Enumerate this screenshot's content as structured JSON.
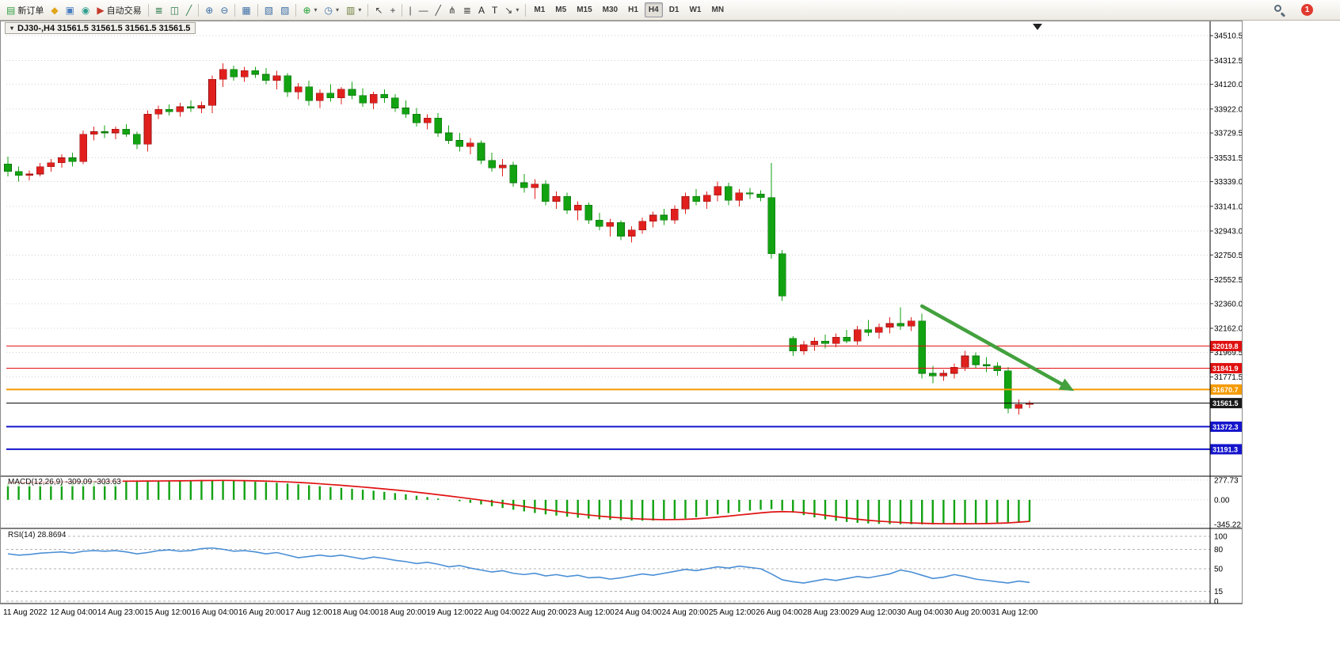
{
  "toolbar": {
    "notification_count": "1",
    "items": [
      {
        "type": "button",
        "name": "new-order-button",
        "glyph": "▤",
        "color": "#2e9e3f",
        "label": "新订单"
      },
      {
        "type": "button",
        "name": "mql-editor-button",
        "glyph": "◆",
        "color": "#e0a51a"
      },
      {
        "type": "button",
        "name": "depth-of-market-button",
        "glyph": "▣",
        "color": "#4a7dc0"
      },
      {
        "type": "button",
        "name": "community-button",
        "glyph": "◉",
        "color": "#2f9e8f"
      },
      {
        "type": "button",
        "name": "auto-trading-button",
        "glyph": "▶",
        "color": "#c43a2a",
        "label": "自动交易"
      },
      {
        "type": "sep"
      },
      {
        "type": "button",
        "name": "bar-chart-button",
        "glyph": "≣",
        "color": "#2f7d4f"
      },
      {
        "type": "button",
        "name": "candlestick-chart-button",
        "glyph": "◫",
        "color": "#2f7d4f"
      },
      {
        "type": "button",
        "name": "line-chart-button",
        "glyph": "╱",
        "color": "#2f7d4f"
      },
      {
        "type": "sep"
      },
      {
        "type": "button",
        "name": "zoom-in-button",
        "glyph": "⊕",
        "color": "#3a6ea5"
      },
      {
        "type": "button",
        "name": "zoom-out-button",
        "glyph": "⊖",
        "color": "#3a6ea5"
      },
      {
        "type": "sep"
      },
      {
        "type": "button",
        "name": "tile-windows-button",
        "glyph": "▦",
        "color": "#3a6ea5"
      },
      {
        "type": "sep"
      },
      {
        "type": "button",
        "name": "arrange-windows-button",
        "glyph": "▧",
        "color": "#3a6ea5"
      },
      {
        "type": "button",
        "name": "chart-shift-button",
        "glyph": "▨",
        "color": "#3a6ea5"
      },
      {
        "type": "sep"
      },
      {
        "type": "button",
        "name": "indicators-button",
        "glyph": "⊕",
        "color": "#1e9e2e",
        "caret": true
      },
      {
        "type": "button",
        "name": "periods-button",
        "glyph": "◷",
        "color": "#3a6ea5",
        "caret": true
      },
      {
        "type": "button",
        "name": "templates-button",
        "glyph": "▥",
        "color": "#6a7d3a",
        "caret": true
      },
      {
        "type": "sep"
      },
      {
        "type": "button",
        "name": "cursor-button",
        "glyph": "↖",
        "color": "#444444"
      },
      {
        "type": "button",
        "name": "crosshair-button",
        "glyph": "+",
        "color": "#444444"
      },
      {
        "type": "sep"
      },
      {
        "type": "button",
        "name": "vertical-line-button",
        "glyph": "|",
        "color": "#444444"
      },
      {
        "type": "button",
        "name": "horizontal-line-button",
        "glyph": "—",
        "color": "#444444"
      },
      {
        "type": "button",
        "name": "trendline-button",
        "glyph": "╱",
        "color": "#444444"
      },
      {
        "type": "button",
        "name": "channel-button",
        "glyph": "⋔",
        "color": "#444444"
      },
      {
        "type": "button",
        "name": "fibonacci-button",
        "glyph": "≣",
        "color": "#444444"
      },
      {
        "type": "button",
        "name": "text-button",
        "glyph": "A",
        "color": "#222222"
      },
      {
        "type": "button",
        "name": "text-label-button",
        "glyph": "T",
        "color": "#222222"
      },
      {
        "type": "button",
        "name": "arrows-tool-button",
        "glyph": "↘",
        "color": "#444444",
        "caret": true
      },
      {
        "type": "sep"
      }
    ],
    "timeframes": {
      "labels": [
        "M1",
        "M5",
        "M15",
        "M30",
        "H1",
        "H4",
        "D1",
        "W1",
        "MN"
      ],
      "active": "H4"
    }
  },
  "chart": {
    "title": "DJ30-,H4  31561.5 31561.5 31561.5 31561.5"
  },
  "indicators": {
    "macd_label": "MACD(12,26,9) -309.09 -303.63",
    "rsi_label": "RSI(14) 28.8694"
  },
  "chart_data": {
    "type": "candlestick",
    "symbol": "DJ30-",
    "timeframe": "H4",
    "current_price": 31561.5,
    "price_range": [
      30975,
      34619
    ],
    "price_ticks": [
      34510.5,
      34312.5,
      34120.0,
      33922.0,
      33729.5,
      33531.5,
      33339.0,
      33141.0,
      32943.0,
      32750.5,
      32552.5,
      32360.0,
      32162.0,
      31969.5,
      31771.5
    ],
    "time_labels": [
      "11 Aug 2022",
      "12 Aug 04:00",
      "14 Aug 23:00",
      "15 Aug 12:00",
      "16 Aug 04:00",
      "16 Aug 20:00",
      "17 Aug 12:00",
      "18 Aug 04:00",
      "18 Aug 20:00",
      "19 Aug 12:00",
      "22 Aug 04:00",
      "22 Aug 20:00",
      "23 Aug 12:00",
      "24 Aug 04:00",
      "24 Aug 20:00",
      "25 Aug 12:00",
      "26 Aug 04:00",
      "28 Aug 23:00",
      "29 Aug 12:00",
      "30 Aug 04:00",
      "30 Aug 20:00",
      "31 Aug 12:00"
    ],
    "colors": {
      "bull": "#e1201e",
      "bull_border": "#8f0f0f",
      "bear": "#12a212",
      "bear_border": "#0a6e0a",
      "macd_hist": "#12a212",
      "macd_signal": "#e01212",
      "rsi_line": "#4a8fd6",
      "grid": "#cfcfcf"
    },
    "ohlc": [
      [
        33480,
        33540,
        33380,
        33420
      ],
      [
        33420,
        33460,
        33340,
        33390
      ],
      [
        33390,
        33430,
        33350,
        33400
      ],
      [
        33400,
        33490,
        33380,
        33460
      ],
      [
        33460,
        33520,
        33420,
        33490
      ],
      [
        33490,
        33560,
        33450,
        33530
      ],
      [
        33530,
        33570,
        33460,
        33500
      ],
      [
        33500,
        33750,
        33480,
        33720
      ],
      [
        33720,
        33780,
        33670,
        33740
      ],
      [
        33740,
        33790,
        33690,
        33730
      ],
      [
        33730,
        33780,
        33680,
        33760
      ],
      [
        33760,
        33800,
        33700,
        33720
      ],
      [
        33720,
        33740,
        33600,
        33640
      ],
      [
        33640,
        33910,
        33580,
        33880
      ],
      [
        33880,
        33950,
        33840,
        33920
      ],
      [
        33920,
        33960,
        33870,
        33900
      ],
      [
        33900,
        33970,
        33860,
        33940
      ],
      [
        33940,
        33990,
        33900,
        33930
      ],
      [
        33930,
        33980,
        33890,
        33950
      ],
      [
        33950,
        34190,
        33890,
        34160
      ],
      [
        34160,
        34290,
        34100,
        34240
      ],
      [
        34240,
        34270,
        34150,
        34180
      ],
      [
        34180,
        34260,
        34140,
        34230
      ],
      [
        34230,
        34260,
        34170,
        34200
      ],
      [
        34200,
        34250,
        34120,
        34150
      ],
      [
        34150,
        34230,
        34080,
        34190
      ],
      [
        34190,
        34210,
        34020,
        34060
      ],
      [
        34060,
        34130,
        34000,
        34100
      ],
      [
        34100,
        34150,
        33950,
        33990
      ],
      [
        33990,
        34080,
        33930,
        34050
      ],
      [
        34050,
        34120,
        33980,
        34010
      ],
      [
        34010,
        34100,
        33960,
        34080
      ],
      [
        34080,
        34140,
        34000,
        34030
      ],
      [
        34030,
        34090,
        33940,
        33970
      ],
      [
        33970,
        34060,
        33920,
        34040
      ],
      [
        34040,
        34080,
        33970,
        34010
      ],
      [
        34010,
        34040,
        33900,
        33930
      ],
      [
        33930,
        33990,
        33850,
        33880
      ],
      [
        33880,
        33930,
        33780,
        33810
      ],
      [
        33810,
        33880,
        33760,
        33850
      ],
      [
        33850,
        33890,
        33700,
        33730
      ],
      [
        33730,
        33790,
        33640,
        33670
      ],
      [
        33670,
        33730,
        33580,
        33620
      ],
      [
        33620,
        33690,
        33560,
        33650
      ],
      [
        33650,
        33670,
        33480,
        33510
      ],
      [
        33510,
        33570,
        33420,
        33450
      ],
      [
        33450,
        33520,
        33380,
        33470
      ],
      [
        33470,
        33500,
        33300,
        33330
      ],
      [
        33330,
        33400,
        33250,
        33290
      ],
      [
        33290,
        33360,
        33200,
        33320
      ],
      [
        33320,
        33350,
        33150,
        33180
      ],
      [
        33180,
        33260,
        33120,
        33220
      ],
      [
        33220,
        33250,
        33080,
        33110
      ],
      [
        33110,
        33180,
        33030,
        33150
      ],
      [
        33150,
        33170,
        33000,
        33030
      ],
      [
        33030,
        33090,
        32950,
        32980
      ],
      [
        32980,
        33040,
        32900,
        33010
      ],
      [
        33010,
        33030,
        32870,
        32900
      ],
      [
        32900,
        32980,
        32850,
        32950
      ],
      [
        32950,
        33050,
        32920,
        33020
      ],
      [
        33020,
        33100,
        32970,
        33070
      ],
      [
        33070,
        33120,
        32990,
        33030
      ],
      [
        33030,
        33150,
        33000,
        33120
      ],
      [
        33120,
        33250,
        33080,
        33220
      ],
      [
        33220,
        33280,
        33150,
        33180
      ],
      [
        33180,
        33260,
        33120,
        33230
      ],
      [
        33230,
        33340,
        33180,
        33300
      ],
      [
        33300,
        33330,
        33150,
        33190
      ],
      [
        33190,
        33280,
        33140,
        33250
      ],
      [
        33250,
        33290,
        33200,
        33240
      ],
      [
        33240,
        33270,
        33180,
        33210
      ],
      [
        33210,
        33490,
        32720,
        32760
      ],
      [
        32760,
        32790,
        32380,
        32420
      ],
      [
        32080,
        32100,
        31940,
        31980
      ],
      [
        31980,
        32060,
        31950,
        32030
      ],
      [
        32030,
        32090,
        31980,
        32060
      ],
      [
        32060,
        32110,
        32000,
        32040
      ],
      [
        32040,
        32120,
        32010,
        32090
      ],
      [
        32090,
        32150,
        32040,
        32060
      ],
      [
        32060,
        32180,
        32030,
        32150
      ],
      [
        32150,
        32230,
        32100,
        32130
      ],
      [
        32130,
        32200,
        32080,
        32170
      ],
      [
        32170,
        32250,
        32120,
        32200
      ],
      [
        32200,
        32330,
        32150,
        32180
      ],
      [
        32180,
        32250,
        32140,
        32220
      ],
      [
        32220,
        32280,
        31760,
        31800
      ],
      [
        31800,
        31860,
        31720,
        31780
      ],
      [
        31780,
        31830,
        31740,
        31800
      ],
      [
        31800,
        31880,
        31760,
        31850
      ],
      [
        31850,
        31980,
        31820,
        31940
      ],
      [
        31940,
        31970,
        31840,
        31870
      ],
      [
        31870,
        31930,
        31810,
        31860
      ],
      [
        31860,
        31890,
        31780,
        31820
      ],
      [
        31820,
        31850,
        31480,
        31520
      ],
      [
        31520,
        31590,
        31470,
        31550
      ],
      [
        31550,
        31580,
        31520,
        31561.5
      ]
    ],
    "hlines": [
      {
        "price": 32019.8,
        "color": "#e01010",
        "badge": "#e01010",
        "width": 1
      },
      {
        "price": 31841.9,
        "color": "#e01010",
        "badge": "#e01010",
        "width": 1
      },
      {
        "price": 31670.7,
        "color": "#f59a00",
        "badge": "#f59a00",
        "width": 2
      },
      {
        "price": 31561.5,
        "color": "#000000",
        "badge": "#1a1a1a",
        "width": 1
      },
      {
        "price": 31372.3,
        "color": "#1414cc",
        "badge": "#1414cc",
        "width": 2
      },
      {
        "price": 31191.3,
        "color": "#1414cc",
        "badge": "#1414cc",
        "width": 2
      }
    ],
    "trend_arrow": {
      "i1": 85,
      "p1": 32340,
      "i2": 98.5,
      "p2": 31690,
      "color": "#44a13e"
    },
    "macd": {
      "axis": [
        277.73,
        0,
        -345.22
      ],
      "range": [
        310,
        -380
      ],
      "values": [
        230,
        240,
        245,
        250,
        255,
        258,
        260,
        262,
        264,
        266,
        267,
        268,
        268,
        267,
        268,
        270,
        272,
        274,
        276,
        277,
        275,
        270,
        262,
        255,
        248,
        240,
        230,
        218,
        205,
        192,
        180,
        168,
        155,
        142,
        128,
        112,
        95,
        78,
        58,
        38,
        18,
        0,
        -20,
        -42,
        -65,
        -90,
        -115,
        -140,
        -163,
        -185,
        -205,
        -222,
        -238,
        -252,
        -264,
        -274,
        -282,
        -288,
        -292,
        -294,
        -292,
        -286,
        -276,
        -262,
        -245,
        -226,
        -206,
        -186,
        -168,
        -152,
        -140,
        -132,
        -150,
        -180,
        -215,
        -248,
        -275,
        -296,
        -312,
        -324,
        -332,
        -338,
        -341,
        -343,
        -344,
        -345,
        -344,
        -342,
        -339,
        -335,
        -330,
        -325,
        -320,
        -316,
        -312,
        -309.09
      ],
      "signal": [
        245,
        245,
        246,
        247,
        249,
        251,
        253,
        255,
        257,
        259,
        261,
        262,
        263,
        264,
        265,
        266,
        267,
        269,
        271,
        272,
        273,
        272,
        270,
        267,
        263,
        258,
        252,
        245,
        236,
        226,
        215,
        204,
        192,
        180,
        167,
        153,
        139,
        124,
        107,
        90,
        72,
        54,
        35,
        16,
        -4,
        -25,
        -47,
        -70,
        -93,
        -116,
        -138,
        -159,
        -179,
        -197,
        -214,
        -229,
        -242,
        -254,
        -263,
        -271,
        -276,
        -279,
        -278,
        -274,
        -267,
        -257,
        -244,
        -230,
        -214,
        -199,
        -184,
        -171,
        -166,
        -169,
        -181,
        -198,
        -217,
        -237,
        -256,
        -273,
        -288,
        -300,
        -310,
        -318,
        -325,
        -330,
        -334,
        -336,
        -337,
        -337,
        -336,
        -334,
        -330,
        -325,
        -315,
        -303.63
      ]
    },
    "rsi": {
      "value": 28.8694,
      "levels": [
        100,
        80,
        50,
        15,
        0
      ],
      "values": [
        73,
        71,
        72,
        74,
        75,
        76,
        74,
        77,
        78,
        77,
        78,
        76,
        73,
        75,
        78,
        79,
        77,
        78,
        81,
        82,
        80,
        77,
        78,
        76,
        73,
        75,
        71,
        67,
        69,
        71,
        69,
        71,
        68,
        65,
        68,
        66,
        63,
        61,
        58,
        60,
        57,
        53,
        55,
        51,
        48,
        45,
        47,
        43,
        41,
        43,
        39,
        41,
        38,
        40,
        36,
        37,
        34,
        36,
        39,
        42,
        40,
        43,
        46,
        49,
        47,
        50,
        53,
        51,
        54,
        52,
        50,
        42,
        33,
        30,
        28,
        31,
        34,
        32,
        35,
        38,
        36,
        39,
        42,
        48,
        45,
        40,
        35,
        37,
        41,
        38,
        34,
        32,
        30,
        28,
        31,
        28.87
      ]
    }
  }
}
